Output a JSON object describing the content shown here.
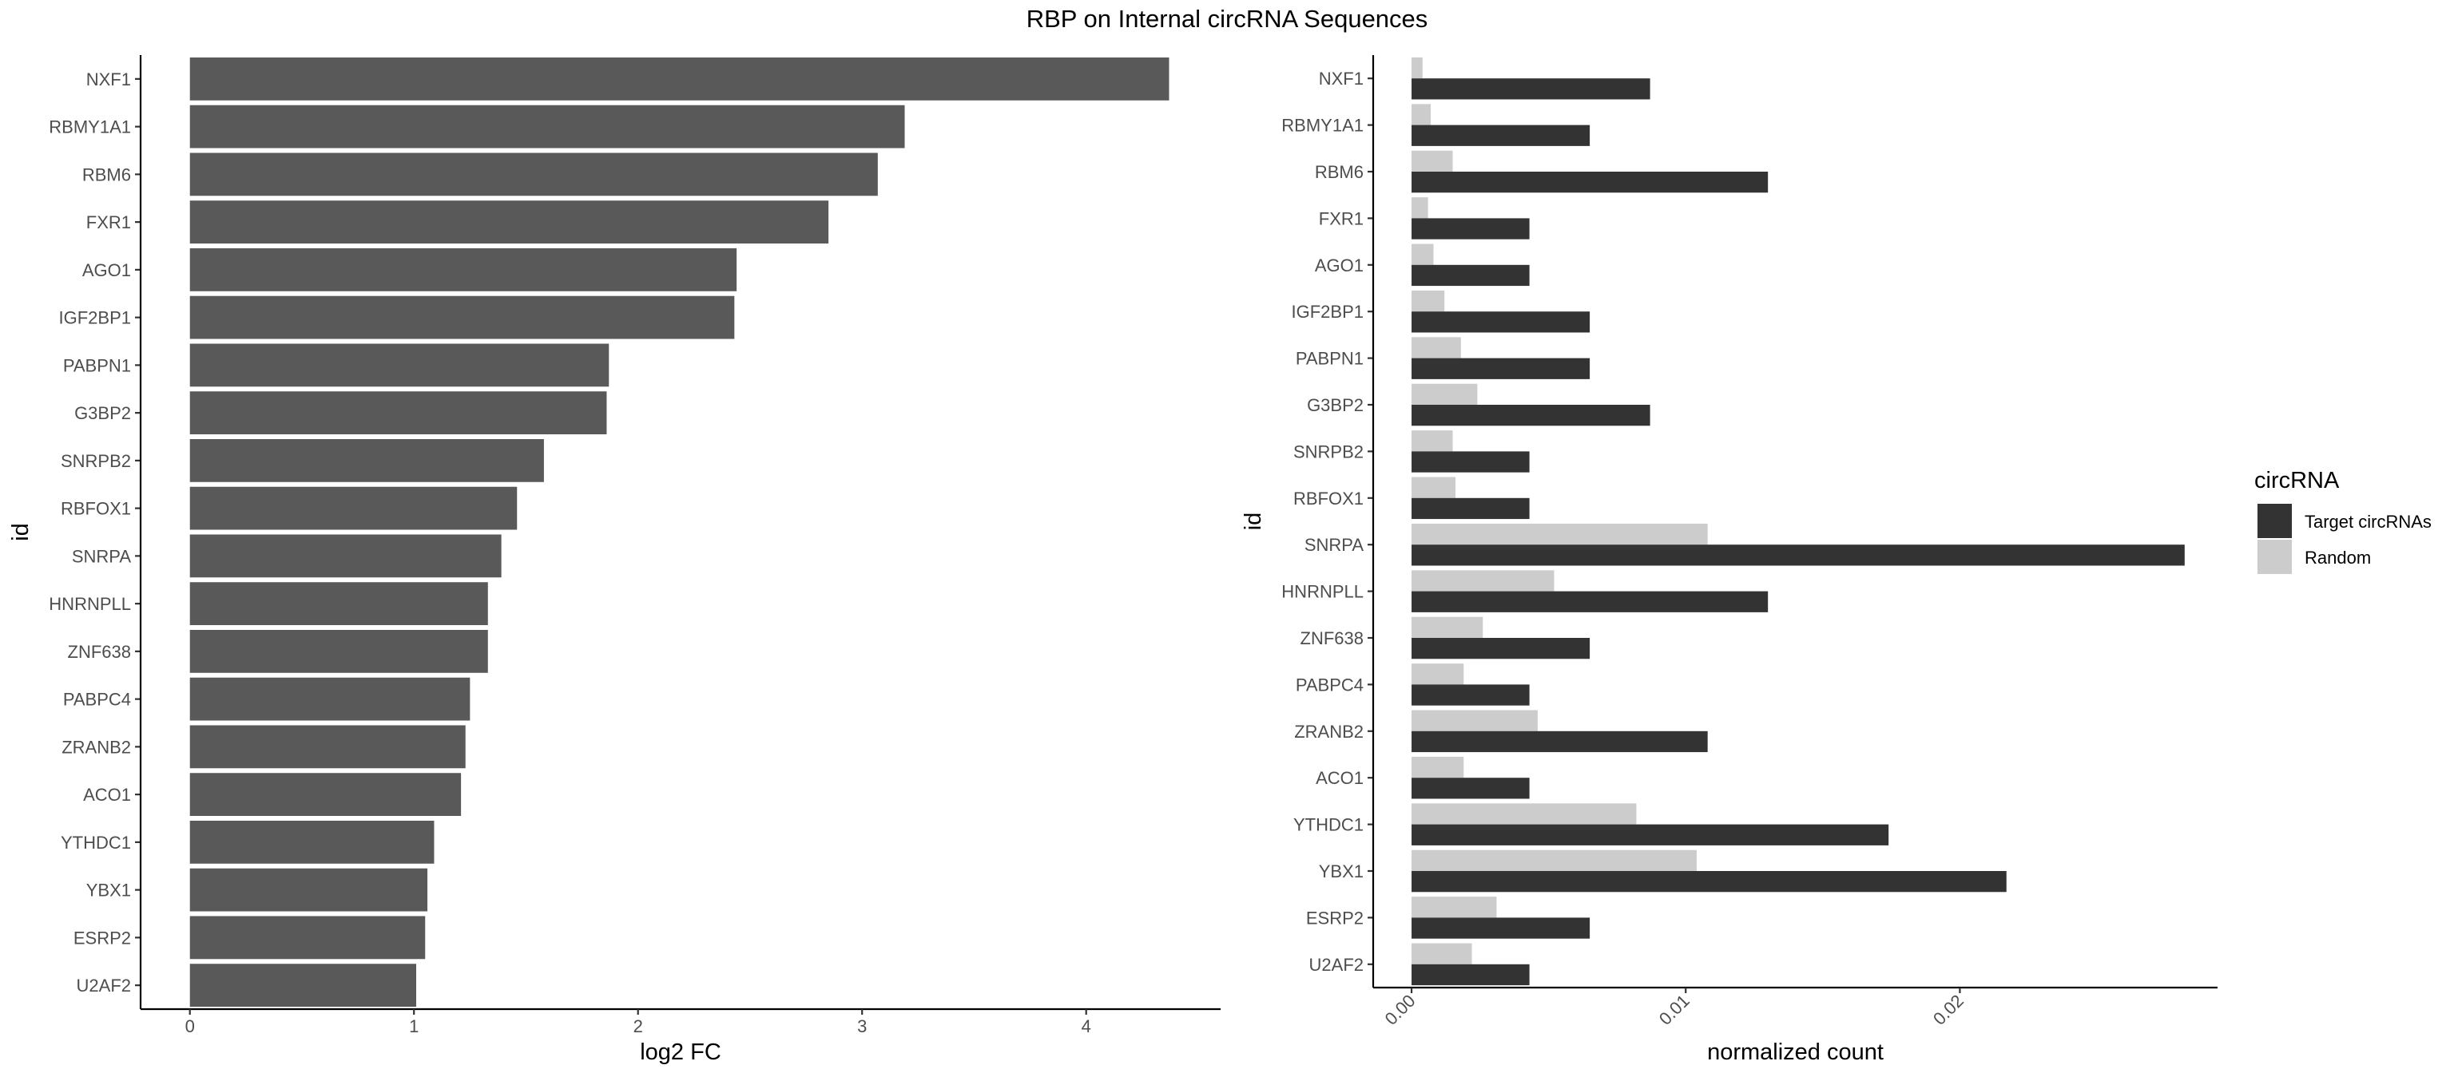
{
  "title": "RBP on Internal circRNA Sequences",
  "colors": {
    "left_bar": "#595959",
    "target": "#333333",
    "random": "#cccccc"
  },
  "chart_data": [
    {
      "type": "bar",
      "orientation": "horizontal",
      "xlabel": "log2 FC",
      "ylabel": "id",
      "xlim": [
        -0.22,
        4.6
      ],
      "xticks": [
        0,
        1,
        2,
        3,
        4
      ],
      "categories": [
        "NXF1",
        "RBMY1A1",
        "RBM6",
        "FXR1",
        "AGO1",
        "IGF2BP1",
        "PABPN1",
        "G3BP2",
        "SNRPB2",
        "RBFOX1",
        "SNRPA",
        "HNRNPLL",
        "ZNF638",
        "PABPC4",
        "ZRANB2",
        "ACO1",
        "YTHDC1",
        "YBX1",
        "ESRP2",
        "U2AF2"
      ],
      "values": [
        4.37,
        3.19,
        3.07,
        2.85,
        2.44,
        2.43,
        1.87,
        1.86,
        1.58,
        1.46,
        1.39,
        1.33,
        1.33,
        1.25,
        1.23,
        1.21,
        1.09,
        1.06,
        1.05,
        1.01
      ],
      "grid": false
    },
    {
      "type": "bar",
      "orientation": "horizontal",
      "xlabel": "normalized count",
      "ylabel": "id",
      "xlim": [
        -0.0014,
        0.0294
      ],
      "xticks": [
        0.0,
        0.01,
        0.02
      ],
      "xtick_labels": [
        "0.00",
        "0.01",
        "0.02"
      ],
      "categories": [
        "NXF1",
        "RBMY1A1",
        "RBM6",
        "FXR1",
        "AGO1",
        "IGF2BP1",
        "PABPN1",
        "G3BP2",
        "SNRPB2",
        "RBFOX1",
        "SNRPA",
        "HNRNPLL",
        "ZNF638",
        "PABPC4",
        "ZRANB2",
        "ACO1",
        "YTHDC1",
        "YBX1",
        "ESRP2",
        "U2AF2"
      ],
      "series": [
        {
          "name": "Target circRNAs",
          "values": [
            0.0087,
            0.0065,
            0.013,
            0.0043,
            0.0043,
            0.0065,
            0.0065,
            0.0087,
            0.0043,
            0.0043,
            0.0282,
            0.013,
            0.0065,
            0.0043,
            0.0108,
            0.0043,
            0.0174,
            0.0217,
            0.0065,
            0.0043
          ]
        },
        {
          "name": "Random",
          "values": [
            0.0004,
            0.0007,
            0.0015,
            0.0006,
            0.0008,
            0.0012,
            0.0018,
            0.0024,
            0.0015,
            0.0016,
            0.0108,
            0.0052,
            0.0026,
            0.0019,
            0.0046,
            0.0019,
            0.0082,
            0.0104,
            0.0031,
            0.0022
          ]
        }
      ],
      "legend": {
        "title": "circRNA",
        "position": "right"
      },
      "grid": false
    }
  ]
}
